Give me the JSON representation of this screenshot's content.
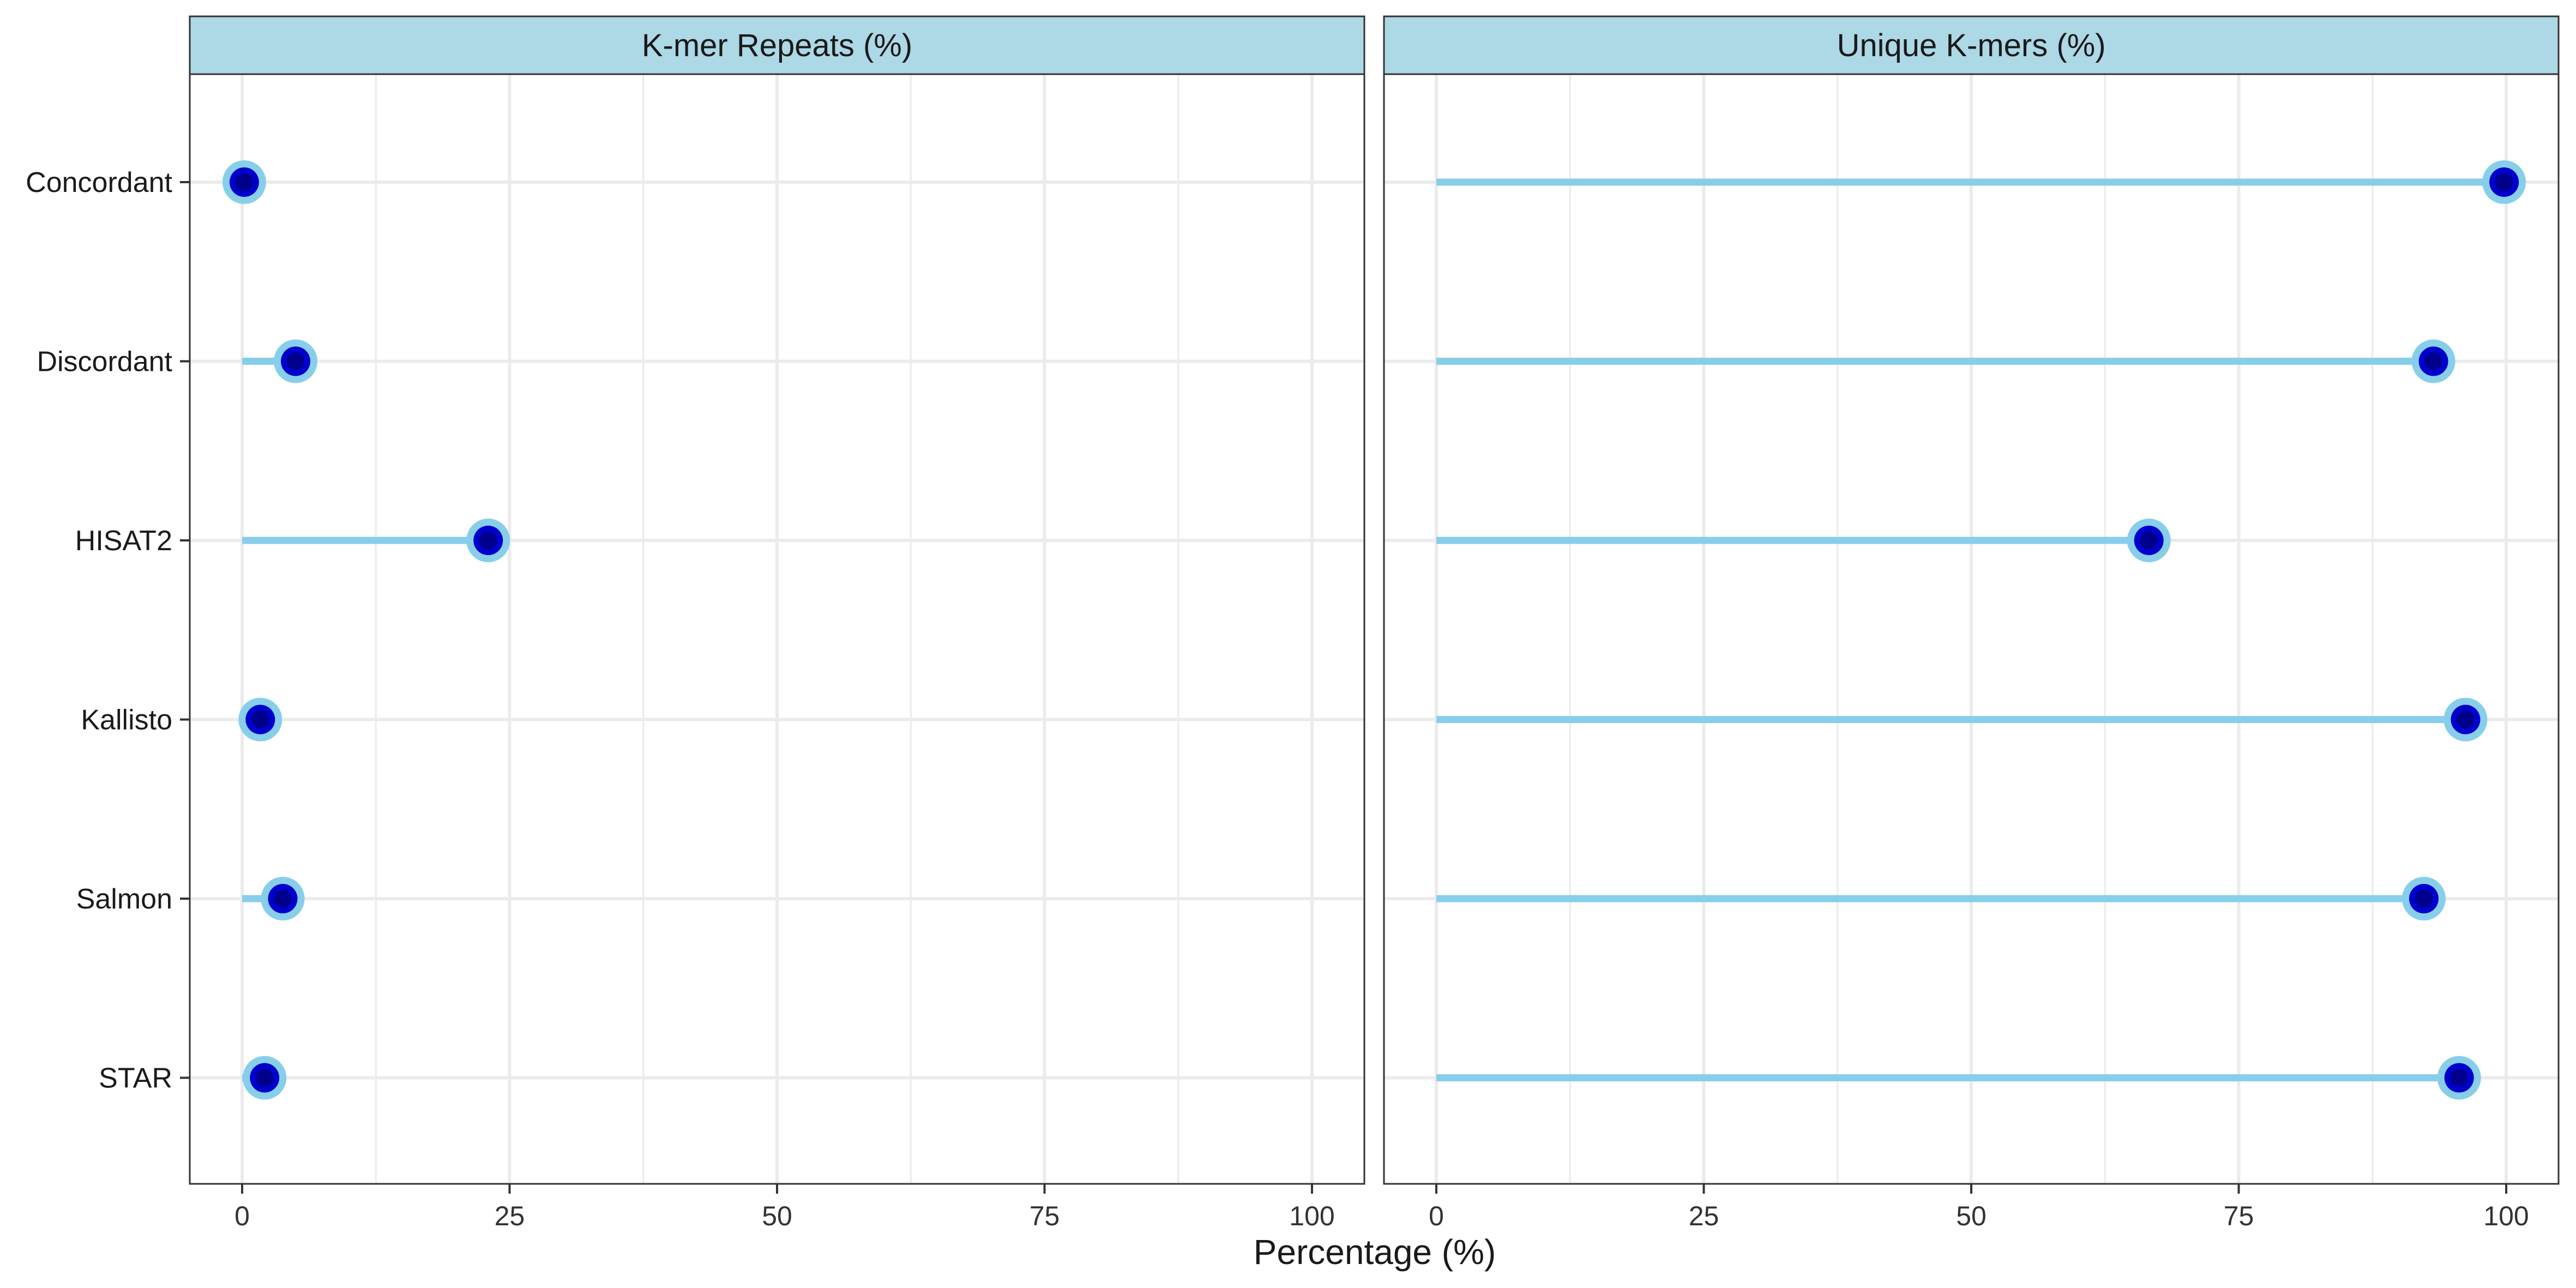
{
  "chart_data": {
    "type": "lollipop",
    "xlabel": "Percentage (%)",
    "xlim": [
      0,
      100
    ],
    "x_ticks": [
      0,
      25,
      50,
      75,
      100
    ],
    "grid": true,
    "categories": [
      "Concordant",
      "Discordant",
      "HISAT2",
      "Kallisto",
      "Salmon",
      "STAR"
    ],
    "panels": [
      {
        "title": "K-mer Repeats (%)",
        "values": [
          0.2,
          5.0,
          23.0,
          1.7,
          3.8,
          2.1
        ]
      },
      {
        "title": "Unique K-mers (%)",
        "values": [
          99.8,
          93.2,
          66.6,
          96.2,
          92.3,
          95.6
        ]
      }
    ],
    "colors": {
      "strip": "#add8e6",
      "segment": "#87ceeb",
      "point_outer": "#87ceeb",
      "point_mid": "#0000cd",
      "point_inner": "#00008b",
      "grid": "#ebebeb",
      "panel_border": "#333333"
    }
  }
}
